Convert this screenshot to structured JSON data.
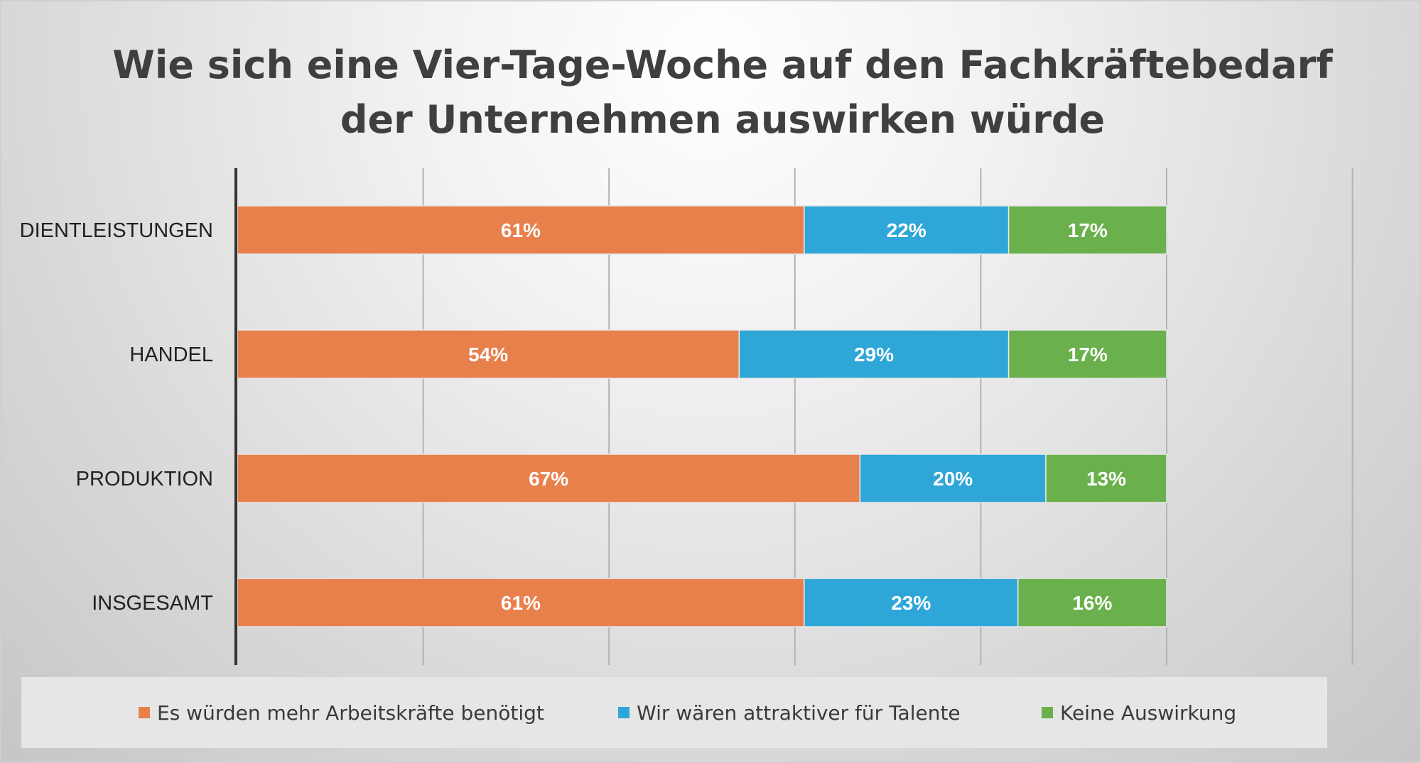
{
  "chart_data": {
    "type": "bar",
    "orientation": "horizontal",
    "stacked": true,
    "title": [
      "Wie sich eine Vier-Tage-Woche auf den Fachkräftebedarf",
      "der Unternehmen auswirken würde"
    ],
    "categories": [
      "DIENTLEISTUNGEN",
      "HANDEL",
      "PRODUKTION",
      "INSGESAMT"
    ],
    "series": [
      {
        "name": "Es würden mehr Arbeitskräfte benötigt",
        "color": "#E8804C",
        "values": [
          61,
          54,
          67,
          61
        ],
        "labels": [
          "61%",
          "54%",
          "67%",
          "61%"
        ]
      },
      {
        "name": "Wir wären attraktiver für Talente",
        "color": "#2FA6D8",
        "values": [
          22,
          29,
          20,
          23
        ],
        "labels": [
          "22%",
          "29%",
          "20%",
          "23%"
        ]
      },
      {
        "name": "Keine Auswirkung",
        "color": "#6AB04C",
        "values": [
          17,
          17,
          13,
          16
        ],
        "labels": [
          "17%",
          "17%",
          "13%",
          "16%"
        ]
      }
    ],
    "xlim": [
      0,
      120
    ],
    "xtick_step": 20,
    "grid": true,
    "legend": "bottom",
    "xlabel": "",
    "ylabel": ""
  }
}
